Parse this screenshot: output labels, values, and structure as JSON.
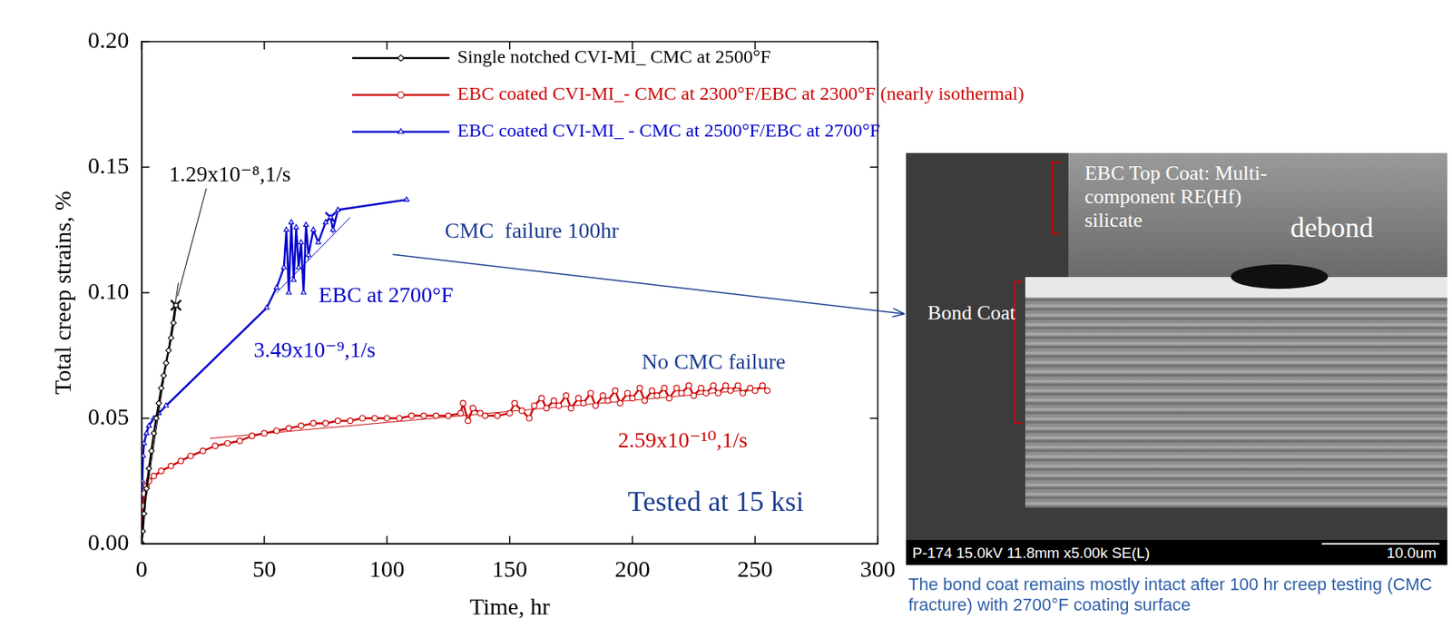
{
  "chart_data": {
    "type": "line",
    "x_label": "Time, hr",
    "y_label": "Total creep strains, %",
    "xlim": [
      0,
      300
    ],
    "xticks": [
      0,
      50,
      100,
      150,
      200,
      250,
      300
    ],
    "ylim": [
      0,
      0.2
    ],
    "yticks": [
      {
        "value": 0,
        "label": "0.00"
      },
      {
        "value": 0.05,
        "label": "0.05"
      },
      {
        "value": 0.1,
        "label": "0.10"
      },
      {
        "value": 0.15,
        "label": "0.15"
      },
      {
        "value": 0.2,
        "label": "0.20"
      }
    ],
    "grid": false,
    "legend": "top",
    "series": [
      {
        "name": "Single notched CVI-MI_ CMC at 2500°F",
        "color": "#000000",
        "marker": "diamond",
        "line_style": "solid",
        "x": [
          0,
          0.5,
          1,
          2,
          3,
          4,
          5,
          6,
          7,
          8,
          9,
          10,
          11,
          12,
          13,
          14
        ],
        "values": [
          0,
          0.005,
          0.012,
          0.022,
          0.03,
          0.037,
          0.044,
          0.05,
          0.056,
          0.062,
          0.067,
          0.072,
          0.077,
          0.082,
          0.088,
          0.095
        ],
        "fit": {
          "x": [
            2,
            15
          ],
          "values": [
            0.02,
            0.104
          ]
        },
        "failure_point": {
          "x": 14,
          "y": 0.095
        }
      },
      {
        "name": "EBC coated CVI-MI_- CMC at 2300°F/EBC at 2300°F (nearly isothermal)",
        "color": "#cc0000",
        "marker": "circle",
        "line_style": "solid",
        "x": [
          0,
          0.5,
          1,
          2,
          3,
          5,
          8,
          12,
          16,
          20,
          25,
          30,
          35,
          40,
          45,
          50,
          55,
          60,
          65,
          70,
          75,
          80,
          85,
          90,
          95,
          100,
          105,
          110,
          115,
          120,
          125,
          130,
          131,
          133,
          135,
          138,
          140,
          145,
          150,
          152,
          155,
          158,
          160,
          163,
          165,
          168,
          170,
          173,
          175,
          178,
          180,
          183,
          185,
          188,
          190,
          193,
          195,
          198,
          200,
          203,
          205,
          208,
          210,
          213,
          215,
          218,
          220,
          223,
          225,
          228,
          230,
          233,
          235,
          238,
          240,
          243,
          245,
          248,
          250,
          253,
          255
        ],
        "values": [
          0,
          0.015,
          0.02,
          0.023,
          0.025,
          0.027,
          0.029,
          0.031,
          0.033,
          0.035,
          0.037,
          0.039,
          0.04,
          0.041,
          0.043,
          0.044,
          0.045,
          0.046,
          0.047,
          0.048,
          0.048,
          0.049,
          0.049,
          0.05,
          0.05,
          0.05,
          0.05,
          0.051,
          0.051,
          0.051,
          0.051,
          0.052,
          0.056,
          0.049,
          0.054,
          0.052,
          0.051,
          0.051,
          0.052,
          0.056,
          0.053,
          0.05,
          0.055,
          0.058,
          0.054,
          0.057,
          0.055,
          0.059,
          0.054,
          0.058,
          0.056,
          0.06,
          0.055,
          0.059,
          0.057,
          0.061,
          0.056,
          0.06,
          0.058,
          0.062,
          0.057,
          0.061,
          0.059,
          0.062,
          0.058,
          0.062,
          0.06,
          0.063,
          0.059,
          0.062,
          0.06,
          0.063,
          0.06,
          0.063,
          0.061,
          0.063,
          0.06,
          0.062,
          0.061,
          0.063,
          0.061
        ],
        "fit": {
          "x": [
            28,
            255
          ],
          "values": [
            0.042,
            0.062
          ]
        }
      },
      {
        "name": "EBC coated CVI-MI_ - CMC at 2500°F/EBC at 2700°F",
        "color": "#0000cc",
        "marker": "triangle",
        "line_style": "solid",
        "x": [
          0,
          0.3,
          0.6,
          1,
          2,
          3,
          5,
          7,
          10,
          51,
          55,
          58,
          59,
          60,
          61,
          62,
          63,
          64,
          65,
          66,
          67,
          68,
          70,
          72,
          75,
          77,
          78,
          80,
          108
        ],
        "values": [
          0,
          0.025,
          0.035,
          0.04,
          0.044,
          0.047,
          0.05,
          0.052,
          0.055,
          0.094,
          0.102,
          0.11,
          0.125,
          0.1,
          0.128,
          0.105,
          0.126,
          0.11,
          0.12,
          0.1,
          0.127,
          0.115,
          0.125,
          0.12,
          0.128,
          0.13,
          0.125,
          0.133,
          0.137
        ],
        "fit": {
          "x": [
            55,
            85
          ],
          "values": [
            0.1,
            0.13
          ]
        },
        "failure_point": {
          "x": 77,
          "y": 0.13
        }
      }
    ],
    "annotations": [
      {
        "text": "1.29x10⁻⁸,1/s",
        "color": "#000000"
      },
      {
        "text": "CMC  failure 100hr",
        "color": "#1a3c8f"
      },
      {
        "text": "EBC at 2700°F",
        "color": "#0000cc"
      },
      {
        "text": "3.49x10⁻⁹,1/s",
        "color": "#0000cc"
      },
      {
        "text": "No CMC failure",
        "color": "#1a3c8f"
      },
      {
        "text": "2.59x10⁻¹⁰,1/s",
        "color": "#cc0000"
      },
      {
        "text": "Tested at 15 ksi",
        "color": "#1a3c8f"
      }
    ],
    "inset": {
      "labels": [
        "EBC Top Coat: Multi-component RE(Hf) silicate",
        "Bond Coat",
        "debond"
      ],
      "info_bar": "P-174 15.0kV 11.8mm x5.00k SE(L)",
      "scale_bar": "10.0um",
      "caption": "The bond coat remains mostly intact after 100 hr creep testing (CMC fracture) with 2700°F coating surface"
    }
  }
}
